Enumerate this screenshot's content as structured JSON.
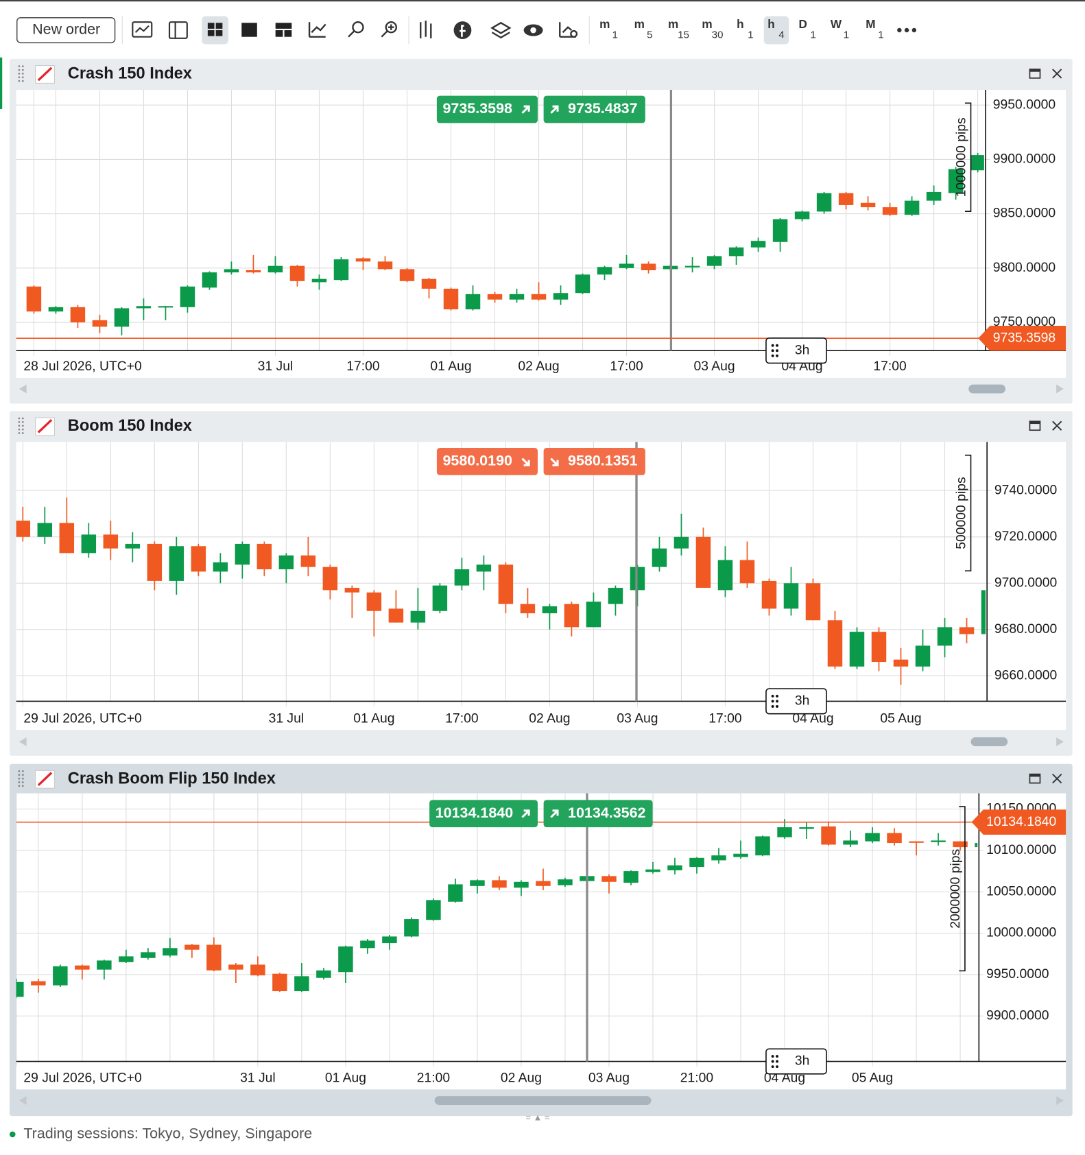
{
  "toolbar": {
    "new_order": "New order",
    "timeframes": [
      {
        "unit": "m",
        "count": 1
      },
      {
        "unit": "m",
        "count": 5
      },
      {
        "unit": "m",
        "count": 15
      },
      {
        "unit": "m",
        "count": 30
      },
      {
        "unit": "h",
        "count": 1
      },
      {
        "unit": "h",
        "count": 4,
        "selected": true
      },
      {
        "unit": "D",
        "count": 1
      },
      {
        "unit": "W",
        "count": 1
      },
      {
        "unit": "M",
        "count": 1
      }
    ]
  },
  "charts": [
    {
      "type": "candlestick",
      "title": "Crash 150 Index",
      "ylim": [
        9724,
        9964
      ],
      "yticks": [
        {
          "value": 9950,
          "label": "9950.0000"
        },
        {
          "value": 9900,
          "label": "9900.0000"
        },
        {
          "value": 9850,
          "label": "9850.0000"
        },
        {
          "value": 9800,
          "label": "9800.0000"
        },
        {
          "value": 9750,
          "label": "9750.0000"
        }
      ],
      "xticks": [
        {
          "value": 0,
          "label": "28 Jul 2026, UTC+0"
        },
        {
          "value": 11,
          "label": "31 Jul"
        },
        {
          "value": 15,
          "label": "17:00"
        },
        {
          "value": 19,
          "label": "01 Aug"
        },
        {
          "value": 23,
          "label": "02 Aug"
        },
        {
          "value": 27,
          "label": "17:00"
        },
        {
          "value": 31,
          "label": "03 Aug"
        },
        {
          "value": 35,
          "label": "04 Aug"
        },
        {
          "value": 39,
          "label": "17:00"
        }
      ],
      "open": [
        9783,
        9760,
        9764,
        9752,
        9746,
        9763,
        9764,
        9764,
        9782,
        9796,
        9798,
        9796,
        9802,
        9787,
        9789,
        9809,
        9806,
        9799,
        9790,
        9781,
        9762,
        9776,
        9771,
        9776,
        9771,
        9777,
        9794,
        9800,
        9804,
        9799,
        9801,
        9802,
        9811,
        9819,
        9824,
        9845,
        9852,
        9869,
        9860,
        9856,
        9849,
        9862,
        9869,
        9890
      ],
      "high": [
        9784,
        9765,
        9766,
        9757,
        9764,
        9772,
        9765,
        9784,
        9797,
        9806,
        9812,
        9811,
        9803,
        9794,
        9810,
        9810,
        9811,
        9800,
        9791,
        9782,
        9784,
        9778,
        9781,
        9787,
        9784,
        9795,
        9802,
        9812,
        9806,
        9804,
        9810,
        9812,
        9820,
        9828,
        9846,
        9853,
        9870,
        9870,
        9866,
        9860,
        9866,
        9876,
        9893,
        9906
      ],
      "low": [
        9758,
        9758,
        9745,
        9740,
        9738,
        9752,
        9752,
        9759,
        9780,
        9794,
        9795,
        9795,
        9783,
        9780,
        9788,
        9798,
        9798,
        9787,
        9772,
        9761,
        9761,
        9768,
        9768,
        9770,
        9766,
        9776,
        9789,
        9799,
        9795,
        9797,
        9796,
        9799,
        9803,
        9815,
        9815,
        9843,
        9850,
        9854,
        9853,
        9848,
        9848,
        9858,
        9863,
        9888
      ],
      "close": [
        9760,
        9764,
        9750,
        9746,
        9763,
        9765,
        9765,
        9783,
        9796,
        9799,
        9796,
        9802,
        9788,
        9790,
        9808,
        9806,
        9799,
        9788,
        9781,
        9762,
        9776,
        9771,
        9776,
        9771,
        9777,
        9794,
        9801,
        9804,
        9798,
        9802,
        9802,
        9811,
        9819,
        9825,
        9845,
        9852,
        9869,
        9858,
        9856,
        9849,
        9862,
        9870,
        9891,
        9904
      ],
      "bid": {
        "value": 9735.3598,
        "label": "9735.3598"
      },
      "ask": {
        "value": 9735.4837,
        "label": "9735.4837"
      },
      "trend": "up",
      "range_label": "1000000 pips",
      "interval": "3h",
      "up_color": "#0a9a4a",
      "down_color": "#f05a22",
      "tag_color": "#22a45c",
      "price_line_color": "#f05a22"
    },
    {
      "type": "candlestick",
      "title": "Boom 150 Index",
      "ylim": [
        9649,
        9761
      ],
      "yticks": [
        {
          "value": 9740,
          "label": "9740.0000"
        },
        {
          "value": 9720,
          "label": "9720.0000"
        },
        {
          "value": 9700,
          "label": "9700.0000"
        },
        {
          "value": 9680,
          "label": "9680.0000"
        },
        {
          "value": 9660,
          "label": "9660.0000"
        }
      ],
      "xticks": [
        {
          "value": 0,
          "label": "29 Jul 2026, UTC+0"
        },
        {
          "value": 12,
          "label": "31 Jul"
        },
        {
          "value": 16,
          "label": "01 Aug"
        },
        {
          "value": 20,
          "label": "17:00"
        },
        {
          "value": 24,
          "label": "02 Aug"
        },
        {
          "value": 28,
          "label": "03 Aug"
        },
        {
          "value": 32,
          "label": "17:00"
        },
        {
          "value": 36,
          "label": "04 Aug"
        },
        {
          "value": 40,
          "label": "05 Aug"
        }
      ],
      "open": [
        9727,
        9720,
        9726,
        9713,
        9721,
        9715,
        9717,
        9701,
        9716,
        9705,
        9708,
        9717,
        9706,
        9712,
        9707,
        9698,
        9696,
        9689,
        9683,
        9688,
        9699,
        9705,
        9708,
        9691,
        9687,
        9691,
        9681,
        9691,
        9697,
        9707,
        9715,
        9720,
        9697,
        9710,
        9701,
        9689,
        9700,
        9684,
        9664,
        9679,
        9667,
        9664,
        9673,
        9681,
        9678
      ],
      "high": [
        9733,
        9733,
        9737,
        9726,
        9727,
        9722,
        9718,
        9720,
        9717,
        9713,
        9718,
        9718,
        9713,
        9720,
        9708,
        9699,
        9697,
        9697,
        9698,
        9700,
        9711,
        9712,
        9709,
        9698,
        9691,
        9692,
        9696,
        9699,
        9708,
        9720,
        9730,
        9724,
        9716,
        9718,
        9702,
        9707,
        9702,
        9688,
        9681,
        9681,
        9672,
        9680,
        9685,
        9685,
        9697
      ],
      "low": [
        9718,
        9717,
        9713,
        9711,
        9710,
        9709,
        9697,
        9695,
        9703,
        9700,
        9702,
        9703,
        9700,
        9703,
        9693,
        9685,
        9677,
        9683,
        9680,
        9687,
        9697,
        9697,
        9687,
        9685,
        9680,
        9677,
        9681,
        9686,
        9690,
        9705,
        9712,
        9698,
        9694,
        9698,
        9686,
        9686,
        9684,
        9663,
        9663,
        9662,
        9656,
        9662,
        9668,
        9674,
        9678
      ],
      "close": [
        9720,
        9726,
        9713,
        9721,
        9715,
        9717,
        9701,
        9716,
        9705,
        9709,
        9717,
        9706,
        9712,
        9707,
        9697,
        9696,
        9688,
        9683,
        9688,
        9699,
        9706,
        9708,
        9691,
        9687,
        9690,
        9681,
        9692,
        9698,
        9707,
        9715,
        9720,
        9698,
        9710,
        9700,
        9689,
        9700,
        9684,
        9664,
        9679,
        9666,
        9664,
        9673,
        9681,
        9678,
        9697
      ],
      "bid": {
        "value": 9580.019,
        "label": "9580.0190"
      },
      "ask": {
        "value": 9580.1351,
        "label": "9580.1351"
      },
      "trend": "down",
      "range_label": "500000 pips",
      "interval": "3h",
      "up_color": "#0a9a4a",
      "down_color": "#f05a22",
      "tag_color": "#f36e48",
      "price_line_color": "#f05a22"
    },
    {
      "type": "candlestick",
      "title": "Crash Boom Flip 150 Index",
      "ylim": [
        9845,
        10169
      ],
      "yticks": [
        {
          "value": 10150,
          "label": "10150.0000"
        },
        {
          "value": 10100,
          "label": "10100.0000"
        },
        {
          "value": 10050,
          "label": "10050.0000"
        },
        {
          "value": 10000,
          "label": "10000.0000"
        },
        {
          "value": 9950,
          "label": "9950.0000"
        },
        {
          "value": 9900,
          "label": "9900.0000"
        }
      ],
      "xticks": [
        {
          "value": 0,
          "label": "29 Jul 2026, UTC+0"
        },
        {
          "value": 11,
          "label": "31 Jul"
        },
        {
          "value": 15,
          "label": "01 Aug"
        },
        {
          "value": 19,
          "label": "21:00"
        },
        {
          "value": 23,
          "label": "02 Aug"
        },
        {
          "value": 27,
          "label": "03 Aug"
        },
        {
          "value": 31,
          "label": "21:00"
        },
        {
          "value": 35,
          "label": "04 Aug"
        },
        {
          "value": 39,
          "label": "05 Aug"
        }
      ],
      "open": [
        9923,
        9942,
        9937,
        9961,
        9956,
        9965,
        9970,
        9973,
        9986,
        9986,
        9962,
        9962,
        9951,
        9930,
        9946,
        9953,
        9982,
        9988,
        9996,
        10016,
        10038,
        10057,
        10064,
        10055,
        10063,
        10058,
        10063,
        10069,
        10061,
        10074,
        10076,
        10080,
        10088,
        10092,
        10094,
        10116,
        10126,
        10129,
        10107,
        10111,
        10121,
        10111,
        10110,
        10111,
        10104
      ],
      "high": [
        9945,
        9945,
        9962,
        9962,
        9968,
        9980,
        9982,
        9994,
        9987,
        9995,
        9964,
        9972,
        9952,
        9964,
        9958,
        9985,
        9993,
        9998,
        10019,
        10042,
        10066,
        10065,
        10069,
        10064,
        10078,
        10067,
        10072,
        10071,
        10076,
        10086,
        10091,
        10092,
        10103,
        10112,
        10118,
        10138,
        10134,
        10135,
        10124,
        10128,
        10127,
        10111,
        10121,
        10111,
        10110
      ],
      "low": [
        9922,
        9928,
        9935,
        9944,
        9944,
        9964,
        9968,
        9971,
        9970,
        9954,
        9940,
        9948,
        9929,
        9929,
        9944,
        9940,
        9975,
        9980,
        9995,
        10015,
        10037,
        10048,
        10052,
        10045,
        10052,
        10056,
        10061,
        10048,
        10058,
        10072,
        10071,
        10072,
        10084,
        10090,
        10093,
        10114,
        10114,
        10106,
        10104,
        10109,
        10106,
        10094,
        10106,
        10100,
        10103
      ],
      "close": [
        9941,
        9937,
        9960,
        9956,
        9967,
        9972,
        9977,
        9982,
        9980,
        9955,
        9956,
        9949,
        9930,
        9948,
        9955,
        9984,
        9991,
        9996,
        10017,
        10040,
        10059,
        10064,
        10055,
        10062,
        10057,
        10065,
        10069,
        10062,
        10075,
        10077,
        10082,
        10091,
        10094,
        10096,
        10117,
        10128,
        10128,
        10107,
        10112,
        10121,
        10109,
        10110,
        10112,
        10104,
        10109
      ],
      "bid": {
        "value": 10134.184,
        "label": "10134.1840"
      },
      "ask": {
        "value": 10134.3562,
        "label": "10134.3562"
      },
      "trend": "up",
      "range_label": "2000000 pips",
      "interval": "3h",
      "up_color": "#0a9a4a",
      "down_color": "#f05a22",
      "tag_color": "#22a45c",
      "price_line_color": "#f05a22"
    }
  ],
  "status": "Trading sessions: Tokyo, Sydney, Singapore"
}
